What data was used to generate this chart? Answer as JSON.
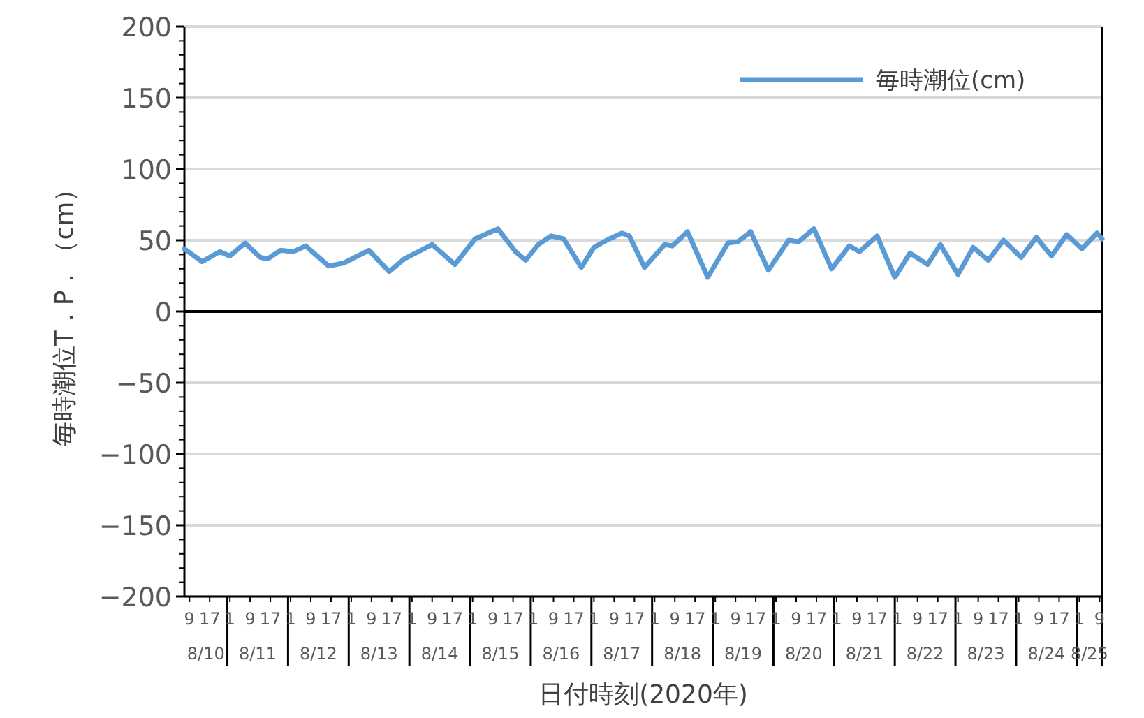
{
  "chart_data": {
    "type": "line",
    "xlabel": "日付時刻(2020年)",
    "ylabel": "毎時潮位T．P．（cm）",
    "xlim": [
      "2020-08-10T07:00",
      "2020-08-25T10:00"
    ],
    "ylim": [
      -200,
      200
    ],
    "yticks": [
      -200,
      -150,
      -100,
      -50,
      0,
      50,
      100,
      150,
      200
    ],
    "xticks": [
      {
        "value": "2020-08-10T09:00",
        "label": "9"
      },
      {
        "value": "2020-08-10T17:00",
        "label": "17"
      },
      {
        "value": "2020-08-11T00:00",
        "label": null
      },
      {
        "value": "2020-08-11T01:00",
        "label": "1"
      },
      {
        "value": "2020-08-11T09:00",
        "label": "9"
      },
      {
        "value": "2020-08-11T17:00",
        "label": "17"
      },
      {
        "value": "2020-08-12T00:00",
        "label": null
      },
      {
        "value": "2020-08-12T01:00",
        "label": "1"
      },
      {
        "value": "2020-08-12T09:00",
        "label": "9"
      },
      {
        "value": "2020-08-12T17:00",
        "label": "17"
      },
      {
        "value": "2020-08-13T00:00",
        "label": null
      },
      {
        "value": "2020-08-13T01:00",
        "label": "1"
      },
      {
        "value": "2020-08-13T09:00",
        "label": "9"
      },
      {
        "value": "2020-08-13T17:00",
        "label": "17"
      },
      {
        "value": "2020-08-14T00:00",
        "label": null
      },
      {
        "value": "2020-08-14T01:00",
        "label": "1"
      },
      {
        "value": "2020-08-14T09:00",
        "label": "9"
      },
      {
        "value": "2020-08-14T17:00",
        "label": "17"
      },
      {
        "value": "2020-08-15T00:00",
        "label": null
      },
      {
        "value": "2020-08-15T01:00",
        "label": "1"
      },
      {
        "value": "2020-08-15T09:00",
        "label": "9"
      },
      {
        "value": "2020-08-15T17:00",
        "label": "17"
      },
      {
        "value": "2020-08-16T00:00",
        "label": null
      },
      {
        "value": "2020-08-16T01:00",
        "label": "1"
      },
      {
        "value": "2020-08-16T09:00",
        "label": "9"
      },
      {
        "value": "2020-08-16T17:00",
        "label": "17"
      },
      {
        "value": "2020-08-17T00:00",
        "label": null
      },
      {
        "value": "2020-08-17T01:00",
        "label": "1"
      },
      {
        "value": "2020-08-17T09:00",
        "label": "9"
      },
      {
        "value": "2020-08-17T17:00",
        "label": "17"
      },
      {
        "value": "2020-08-18T00:00",
        "label": null
      },
      {
        "value": "2020-08-18T01:00",
        "label": "1"
      },
      {
        "value": "2020-08-18T09:00",
        "label": "9"
      },
      {
        "value": "2020-08-18T17:00",
        "label": "17"
      },
      {
        "value": "2020-08-19T00:00",
        "label": null
      },
      {
        "value": "2020-08-19T01:00",
        "label": "1"
      },
      {
        "value": "2020-08-19T09:00",
        "label": "9"
      },
      {
        "value": "2020-08-19T17:00",
        "label": "17"
      },
      {
        "value": "2020-08-20T00:00",
        "label": null
      },
      {
        "value": "2020-08-20T01:00",
        "label": "1"
      },
      {
        "value": "2020-08-20T09:00",
        "label": "9"
      },
      {
        "value": "2020-08-20T17:00",
        "label": "17"
      },
      {
        "value": "2020-08-21T00:00",
        "label": null
      },
      {
        "value": "2020-08-21T01:00",
        "label": "1"
      },
      {
        "value": "2020-08-21T09:00",
        "label": "9"
      },
      {
        "value": "2020-08-21T17:00",
        "label": "17"
      },
      {
        "value": "2020-08-22T00:00",
        "label": null
      },
      {
        "value": "2020-08-22T01:00",
        "label": "1"
      },
      {
        "value": "2020-08-22T09:00",
        "label": "9"
      },
      {
        "value": "2020-08-22T17:00",
        "label": "17"
      },
      {
        "value": "2020-08-23T00:00",
        "label": null
      },
      {
        "value": "2020-08-23T01:00",
        "label": "1"
      },
      {
        "value": "2020-08-23T09:00",
        "label": "9"
      },
      {
        "value": "2020-08-23T17:00",
        "label": "17"
      },
      {
        "value": "2020-08-24T00:00",
        "label": null
      },
      {
        "value": "2020-08-24T01:00",
        "label": "1"
      },
      {
        "value": "2020-08-24T09:00",
        "label": "9"
      },
      {
        "value": "2020-08-24T17:00",
        "label": "17"
      },
      {
        "value": "2020-08-25T00:00",
        "label": null
      },
      {
        "value": "2020-08-25T01:00",
        "label": "1"
      },
      {
        "value": "2020-08-25T09:00",
        "label": "9"
      }
    ],
    "annotations": [
      "8/10",
      "8/11",
      "8/12",
      "8/13",
      "8/14",
      "8/15",
      "8/16",
      "8/17",
      "8/18",
      "8/19",
      "8/20",
      "8/21",
      "8/22",
      "8/23",
      "8/24",
      "8/25"
    ],
    "grid": "y",
    "legend": "top right",
    "marker": "none",
    "line_style": "solid",
    "series": [
      {
        "name": "毎時潮位(cm)",
        "color": "#5b9bd5",
        "x": [
          "2020-08-10T07:00",
          "2020-08-10T14:00",
          "2020-08-10T21:00",
          "2020-08-11T01:00",
          "2020-08-11T07:00",
          "2020-08-11T13:00",
          "2020-08-11T16:00",
          "2020-08-11T21:00",
          "2020-08-12T02:00",
          "2020-08-12T07:00",
          "2020-08-12T16:00",
          "2020-08-12T22:00",
          "2020-08-13T08:00",
          "2020-08-13T16:00",
          "2020-08-13T22:00",
          "2020-08-14T09:00",
          "2020-08-14T18:00",
          "2020-08-15T02:00",
          "2020-08-15T11:00",
          "2020-08-15T18:00",
          "2020-08-15T22:00",
          "2020-08-16T03:00",
          "2020-08-16T08:00",
          "2020-08-16T13:00",
          "2020-08-16T20:00",
          "2020-08-17T01:00",
          "2020-08-17T06:00",
          "2020-08-17T12:00",
          "2020-08-17T15:00",
          "2020-08-17T21:00",
          "2020-08-18T05:00",
          "2020-08-18T08:00",
          "2020-08-18T14:00",
          "2020-08-18T22:00",
          "2020-08-19T06:00",
          "2020-08-19T10:00",
          "2020-08-19T15:00",
          "2020-08-19T22:00",
          "2020-08-20T06:00",
          "2020-08-20T10:00",
          "2020-08-20T16:00",
          "2020-08-20T23:00",
          "2020-08-21T06:00",
          "2020-08-21T10:00",
          "2020-08-21T17:00",
          "2020-08-22T00:00",
          "2020-08-22T06:00",
          "2020-08-22T13:00",
          "2020-08-22T18:00",
          "2020-08-23T01:00",
          "2020-08-23T07:00",
          "2020-08-23T13:00",
          "2020-08-23T19:00",
          "2020-08-24T02:00",
          "2020-08-24T08:00",
          "2020-08-24T14:00",
          "2020-08-24T20:00",
          "2020-08-25T02:00",
          "2020-08-25T08:00",
          "2020-08-25T10:00"
        ],
        "values": [
          44,
          35,
          42,
          39,
          48,
          38,
          37,
          43,
          42,
          46,
          32,
          34,
          43,
          28,
          37,
          47,
          33,
          51,
          58,
          42,
          36,
          47,
          53,
          51,
          31,
          45,
          50,
          55,
          53,
          31,
          47,
          46,
          56,
          24,
          48,
          49,
          56,
          29,
          50,
          49,
          58,
          30,
          46,
          42,
          53,
          24,
          41,
          33,
          47,
          26,
          45,
          36,
          50,
          38,
          52,
          39,
          54,
          44,
          55,
          51
        ]
      }
    ]
  }
}
